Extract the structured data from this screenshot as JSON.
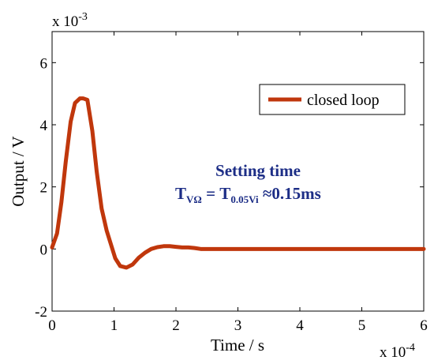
{
  "chart_data": {
    "type": "line",
    "xlabel": "Time / s",
    "ylabel": "Output / V",
    "xlim": [
      0,
      6
    ],
    "ylim": [
      -2,
      7
    ],
    "x_scale_label": {
      "base": "x 10",
      "power": "-4"
    },
    "y_scale_label": {
      "base": "x 10",
      "power": "-3"
    },
    "x_ticks": [
      "0",
      "1",
      "2",
      "3",
      "4",
      "5",
      "6"
    ],
    "y_ticks": [
      "-2",
      "0",
      "2",
      "4",
      "6"
    ],
    "grid": false,
    "legend": {
      "position": "top-right",
      "entries": [
        "closed loop"
      ]
    },
    "series": [
      {
        "name": "closed loop",
        "color": "#c0370c",
        "x": [
          0,
          0.08,
          0.15,
          0.22,
          0.3,
          0.37,
          0.45,
          0.5,
          0.57,
          0.65,
          0.72,
          0.8,
          0.88,
          0.95,
          1.02,
          1.1,
          1.2,
          1.3,
          1.4,
          1.5,
          1.6,
          1.7,
          1.8,
          1.9,
          2.0,
          2.1,
          2.2,
          2.3,
          2.4,
          2.6,
          2.8,
          3.0,
          4.0,
          5.0,
          6.0
        ],
        "y": [
          0.05,
          0.5,
          1.5,
          2.8,
          4.1,
          4.7,
          4.85,
          4.85,
          4.8,
          3.8,
          2.5,
          1.3,
          0.6,
          0.15,
          -0.3,
          -0.55,
          -0.6,
          -0.5,
          -0.28,
          -0.12,
          0.0,
          0.06,
          0.09,
          0.09,
          0.07,
          0.05,
          0.05,
          0.03,
          0.0,
          0.0,
          0.0,
          0.0,
          0.0,
          0.0,
          0.0
        ]
      }
    ]
  },
  "annotation": {
    "title": "Setting time",
    "eq_T1": "T",
    "eq_sub1": "VΩ",
    "eq_mid": " = T",
    "eq_sub2": "0.05Vi",
    "eq_end": " ≈0.15ms"
  }
}
